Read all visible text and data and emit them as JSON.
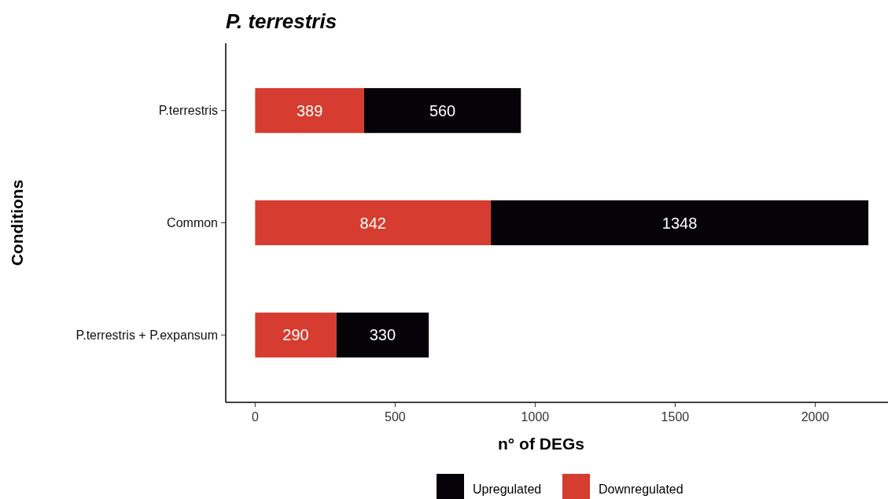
{
  "chart_data": {
    "type": "bar",
    "title": "P. terrestris",
    "xlabel": "n° of DEGs",
    "ylabel": "Conditions",
    "orientation": "horizontal",
    "stacked": true,
    "categories": [
      "P.terrestris",
      "Common",
      "P.terrestris + P.expansum"
    ],
    "series": [
      {
        "name": "Downregulated",
        "color": "#d63c2f",
        "values": [
          389,
          842,
          290
        ]
      },
      {
        "name": "Upregulated",
        "color": "#050308",
        "values": [
          560,
          1348,
          330
        ]
      }
    ],
    "xlim": [
      -105,
      2260
    ],
    "xticks": [
      0,
      500,
      1000,
      1500,
      2000
    ],
    "data_labels": true,
    "legend": "bottom",
    "grid": false
  }
}
